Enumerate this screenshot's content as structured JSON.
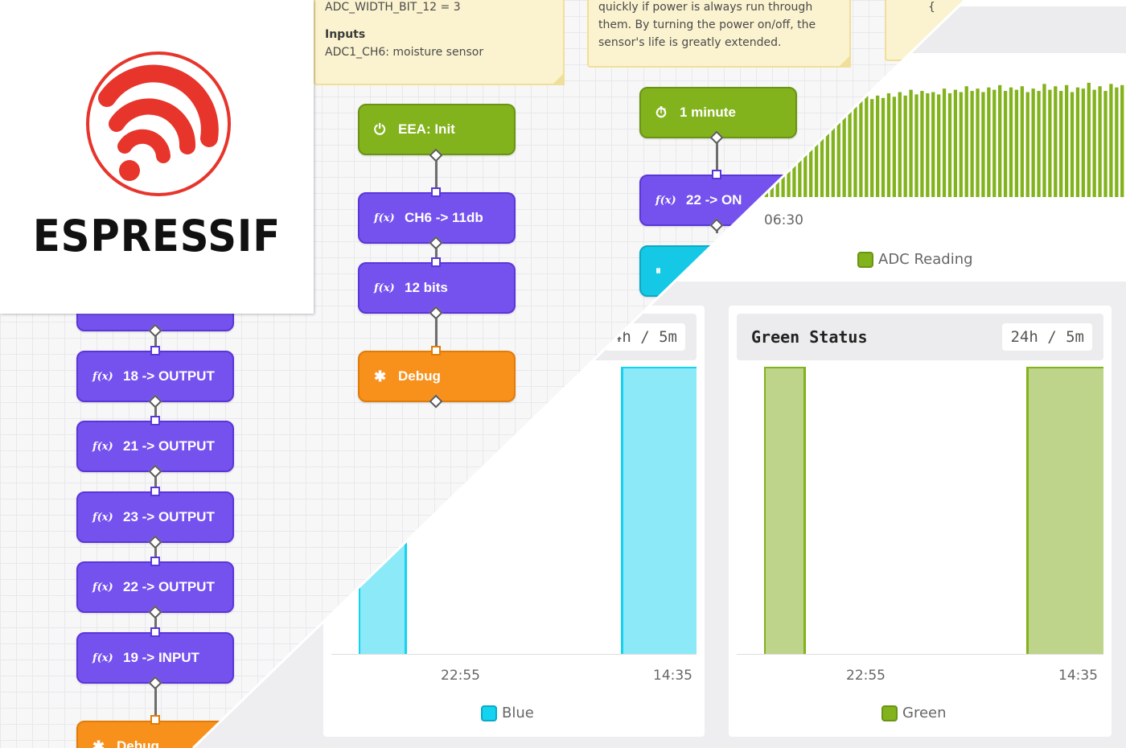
{
  "notes": {
    "left": {
      "top_line": "ADC_WIDTH_BIT_12 = 3",
      "heading": "Inputs",
      "body": "ADC1_CH6: moisture sensor"
    },
    "right": {
      "lines": [
        "quickly if power is always run through",
        "them. By turning the power on/off, the",
        "sensor's life is greatly extended."
      ]
    }
  },
  "flow": {
    "column_a": [
      {
        "label": "18 -> OUTPUT",
        "icon": "function-icon"
      },
      {
        "label": "21 -> OUTPUT",
        "icon": "function-icon"
      },
      {
        "label": "23 -> OUTPUT",
        "icon": "function-icon"
      },
      {
        "label": "22 -> OUTPUT",
        "icon": "function-icon"
      },
      {
        "label": "19 -> INPUT",
        "icon": "function-icon"
      }
    ],
    "column_a_debug": "Debug",
    "column_b": {
      "init": "EEA: Init",
      "ch6": "CH6 -> 11db",
      "bits": "12 bits",
      "debug": "Debug"
    },
    "column_c": {
      "timer": "1 minute",
      "on": "22 -> ON",
      "code_brace": "{"
    },
    "function_glyph": "f(x)",
    "power_glyph": "⏻",
    "timer_glyph": "⏱",
    "bug_glyph": "✱",
    "pause_glyph": "⏸"
  },
  "dashboard": {
    "adc_chart": {
      "tick": "06:30",
      "legend": "ADC Reading",
      "color": "#82b21c"
    },
    "blue_chart": {
      "range": "4h  /  5m",
      "ticks": [
        "22:55",
        "14:35"
      ],
      "legend": "Blue",
      "color": "#14d3f0"
    },
    "green_chart": {
      "title": "Green Status",
      "range": "24h  /  5m",
      "ticks": [
        "22:55",
        "14:35"
      ],
      "legend": "Green",
      "color": "#82b21c"
    }
  },
  "logo": {
    "wordmark": "ESPRESSIF",
    "color": "#e7352c"
  },
  "chart_data": [
    {
      "type": "bar",
      "title": "",
      "legend": "ADC Reading",
      "x_tick_labels": [
        "06:30"
      ],
      "values": [
        70,
        72,
        75,
        73,
        78,
        76,
        80,
        79,
        82,
        78,
        84,
        80,
        83,
        81,
        86,
        82,
        85,
        80,
        84,
        86,
        83,
        88,
        84,
        87,
        85,
        89,
        86,
        90,
        87,
        92,
        88,
        91,
        89,
        90,
        88,
        93,
        89,
        92,
        90,
        95,
        91,
        93,
        90,
        94,
        92,
        96,
        91,
        94,
        92,
        95,
        90,
        93,
        91,
        97,
        92,
        95,
        91,
        96,
        90,
        94,
        93,
        98,
        92,
        95,
        91,
        97,
        94,
        96
      ]
    },
    {
      "type": "area",
      "title": "",
      "legend": "Blue",
      "x_tick_labels": [
        "22:55",
        "14:35"
      ],
      "segments_on": [
        [
          0.0,
          0.2
        ],
        [
          0.8,
          1.0
        ]
      ],
      "ylim": [
        0,
        1
      ]
    },
    {
      "type": "area",
      "title": "Green Status",
      "legend": "Green",
      "x_tick_labels": [
        "22:55",
        "14:35"
      ],
      "segments_on": [
        [
          0.0,
          0.14
        ],
        [
          0.79,
          1.0
        ]
      ],
      "ylim": [
        0,
        1
      ]
    }
  ]
}
